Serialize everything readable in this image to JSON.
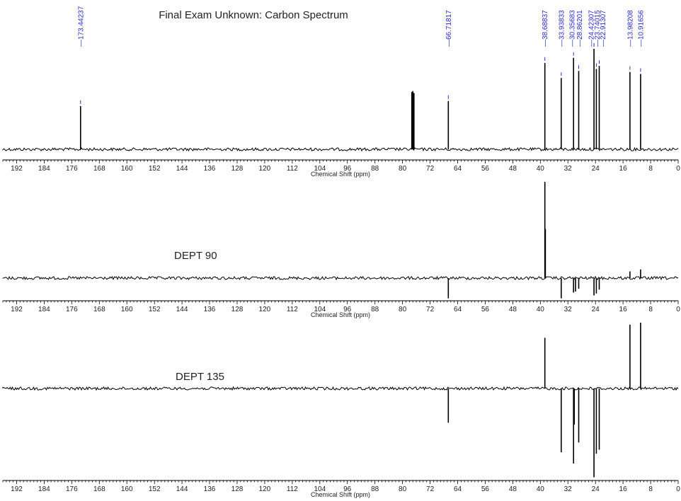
{
  "title": "Final Exam Unknown: Carbon Spectrum",
  "colors": {
    "trace": "#000000",
    "peak_label": "#2b2bd6",
    "text": "#222222"
  },
  "chart_data": [
    {
      "type": "line",
      "name": "carbon",
      "label": "",
      "xlabel": "Chemical Shift (ppm)",
      "xlim": [
        196,
        0
      ],
      "x_reversed": true,
      "ticks": [
        192,
        184,
        176,
        168,
        160,
        152,
        144,
        136,
        128,
        120,
        112,
        104,
        96,
        88,
        80,
        72,
        64,
        56,
        48,
        40,
        32,
        24,
        16,
        8,
        0
      ],
      "ylim": [
        0,
        1
      ],
      "peaks": [
        {
          "ppm": 173.44237,
          "intensity": 0.43,
          "label": "173.44237"
        },
        {
          "ppm": 77.32,
          "intensity": 0.57,
          "label": ""
        },
        {
          "ppm": 77.0,
          "intensity": 0.58,
          "label": ""
        },
        {
          "ppm": 76.68,
          "intensity": 0.56,
          "label": ""
        },
        {
          "ppm": 66.71817,
          "intensity": 0.48,
          "label": "66.71817"
        },
        {
          "ppm": 38.68837,
          "intensity": 0.86,
          "label": "38.68837"
        },
        {
          "ppm": 33.93833,
          "intensity": 0.71,
          "label": "33.93833"
        },
        {
          "ppm": 30.35683,
          "intensity": 0.91,
          "label": "30.35683"
        },
        {
          "ppm": 28.86201,
          "intensity": 0.78,
          "label": "28.86201"
        },
        {
          "ppm": 24.42307,
          "intensity": 1.0,
          "label": "24.42307"
        },
        {
          "ppm": 23.74015,
          "intensity": 0.8,
          "label": "23.74015"
        },
        {
          "ppm": 22.91307,
          "intensity": 0.83,
          "label": "22.91307"
        },
        {
          "ppm": 13.98208,
          "intensity": 0.77,
          "label": "13.98208"
        },
        {
          "ppm": 10.91656,
          "intensity": 0.75,
          "label": "10.91656"
        }
      ]
    },
    {
      "type": "line",
      "name": "dept90",
      "label": "DEPT 90",
      "xlabel": "Chemical Shift (ppm)",
      "xlim": [
        196,
        0
      ],
      "x_reversed": true,
      "ticks": [
        192,
        184,
        176,
        168,
        160,
        152,
        144,
        136,
        128,
        120,
        112,
        104,
        96,
        88,
        80,
        72,
        64,
        56,
        48,
        40,
        32,
        24,
        16,
        8,
        0
      ],
      "ylim": [
        -0.2,
        1
      ],
      "peaks": [
        {
          "ppm": 66.71817,
          "intensity": -0.21
        },
        {
          "ppm": 38.68837,
          "intensity": 1.0
        },
        {
          "ppm": 38.55,
          "intensity": 0.51
        },
        {
          "ppm": 33.93833,
          "intensity": -0.21
        },
        {
          "ppm": 30.35683,
          "intensity": -0.15
        },
        {
          "ppm": 29.8,
          "intensity": -0.14
        },
        {
          "ppm": 28.86201,
          "intensity": -0.11
        },
        {
          "ppm": 24.42307,
          "intensity": -0.18
        },
        {
          "ppm": 23.74015,
          "intensity": -0.16
        },
        {
          "ppm": 22.91307,
          "intensity": -0.12
        },
        {
          "ppm": 13.98208,
          "intensity": 0.07
        },
        {
          "ppm": 10.91656,
          "intensity": 0.09
        }
      ]
    },
    {
      "type": "line",
      "name": "dept135",
      "label": "DEPT 135",
      "xlabel": "Chemical Shift (ppm)",
      "xlim": [
        196,
        0
      ],
      "x_reversed": true,
      "ticks": [
        192,
        184,
        176,
        168,
        160,
        152,
        144,
        136,
        128,
        120,
        112,
        104,
        96,
        88,
        80,
        72,
        64,
        56,
        48,
        40,
        32,
        24,
        16,
        8,
        0
      ],
      "ylim": [
        -1.3,
        1
      ],
      "peaks": [
        {
          "ppm": 66.71817,
          "intensity": -0.52
        },
        {
          "ppm": 38.68837,
          "intensity": 0.77
        },
        {
          "ppm": 33.93833,
          "intensity": -0.97
        },
        {
          "ppm": 30.35683,
          "intensity": -1.14
        },
        {
          "ppm": 30.15,
          "intensity": -0.55
        },
        {
          "ppm": 28.86201,
          "intensity": -0.82
        },
        {
          "ppm": 24.42307,
          "intensity": -1.35
        },
        {
          "ppm": 23.74015,
          "intensity": -0.99
        },
        {
          "ppm": 22.91307,
          "intensity": -0.93
        },
        {
          "ppm": 13.98208,
          "intensity": 0.97
        },
        {
          "ppm": 10.91656,
          "intensity": 1.0
        }
      ]
    }
  ]
}
